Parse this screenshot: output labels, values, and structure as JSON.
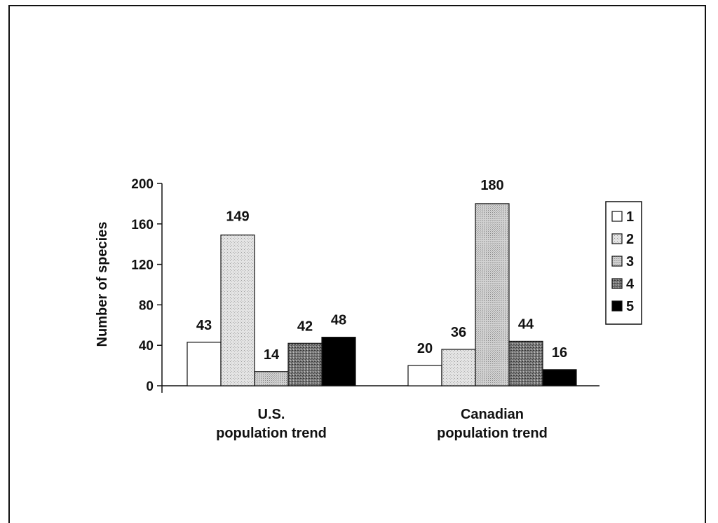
{
  "chart_data": {
    "type": "bar",
    "categories": [
      [
        "U.S.",
        "population trend"
      ],
      [
        "Canadian",
        "population trend"
      ]
    ],
    "series": [
      {
        "name": "1",
        "values": [
          43,
          20
        ],
        "color": "#ffffff",
        "pattern": "none"
      },
      {
        "name": "2",
        "values": [
          149,
          36
        ],
        "color": "#d8d8d8",
        "pattern": "light-dots"
      },
      {
        "name": "3",
        "values": [
          14,
          180
        ],
        "color": "#c8c8c8",
        "pattern": "medium-dots"
      },
      {
        "name": "4",
        "values": [
          42,
          44
        ],
        "color": "#8c8c8c",
        "pattern": "dark-dots"
      },
      {
        "name": "5",
        "values": [
          48,
          16
        ],
        "color": "#000000",
        "pattern": "none"
      }
    ],
    "xlabel": "",
    "ylabel": "Number of species",
    "ylim": [
      0,
      200
    ],
    "yticks": [
      0,
      40,
      80,
      120,
      160,
      200
    ],
    "grid": false,
    "legend_position": "right"
  }
}
